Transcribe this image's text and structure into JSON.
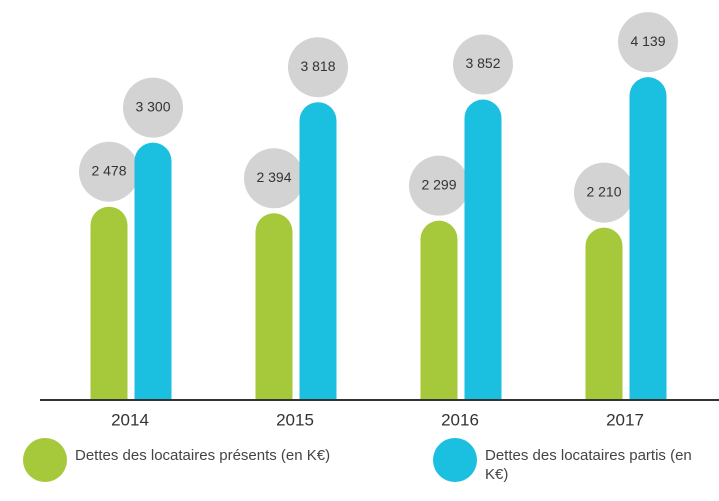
{
  "chart_data": {
    "type": "bar",
    "categories": [
      "2014",
      "2015",
      "2016",
      "2017"
    ],
    "series": [
      {
        "name": "Dettes des locataires présents (en K€)",
        "color": "#a5c93a",
        "values": [
          2478,
          2394,
          2299,
          2210
        ],
        "value_labels": [
          "2 478",
          "2 394",
          "2 299",
          "2 210"
        ]
      },
      {
        "name": "Dettes des locataires partis (en K€)",
        "color": "#1bbfdf",
        "values": [
          3300,
          3818,
          3852,
          4139
        ],
        "value_labels": [
          "3 300",
          "3 818",
          "3 852",
          "4 139"
        ]
      }
    ],
    "ylim": [
      0,
      5000
    ]
  }
}
